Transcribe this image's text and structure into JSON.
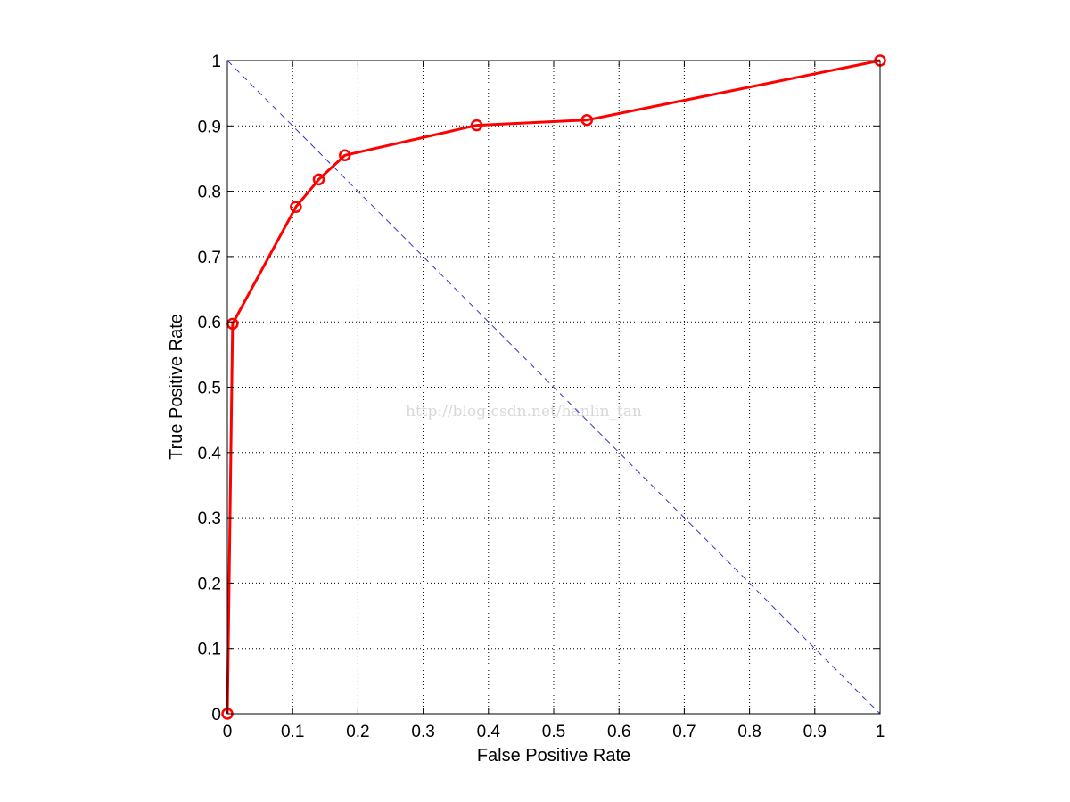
{
  "chart_data": {
    "type": "line",
    "title": "",
    "xlabel": "False Positive Rate",
    "ylabel": "True Positive Rate",
    "xlim": [
      0,
      1
    ],
    "ylim": [
      0,
      1
    ],
    "xticks": [
      "0",
      "0.1",
      "0.2",
      "0.3",
      "0.4",
      "0.5",
      "0.6",
      "0.7",
      "0.8",
      "0.9",
      "1"
    ],
    "yticks": [
      "0",
      "0.1",
      "0.2",
      "0.3",
      "0.4",
      "0.5",
      "0.6",
      "0.7",
      "0.8",
      "0.9",
      "1"
    ],
    "grid": true,
    "series": [
      {
        "color": "#ff0000",
        "marker": "circle",
        "x": [
          0,
          0.008,
          0.105,
          0.14,
          0.18,
          0.382,
          0.551,
          1
        ],
        "y": [
          0,
          0.597,
          0.776,
          0.818,
          0.855,
          0.901,
          0.909,
          1
        ]
      },
      {
        "color": "#3333cc",
        "style": "dashed",
        "x": [
          0,
          1
        ],
        "y": [
          1,
          0
        ]
      }
    ],
    "watermark": "http://blog.csdn.net/hanlin_tan"
  }
}
